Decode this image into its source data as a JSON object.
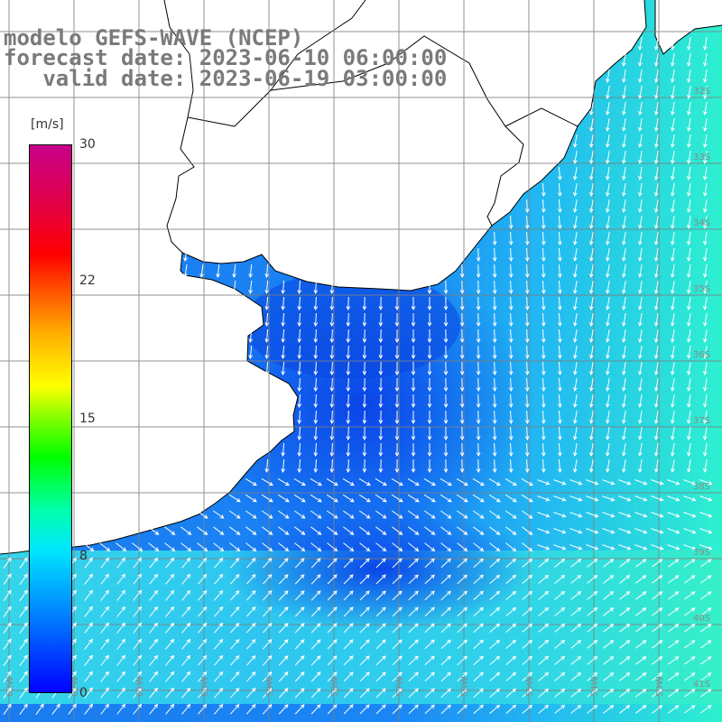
{
  "titles": {
    "line1": "modelo GEFS-WAVE (NCEP)",
    "line2": "forecast date: 2023-06-10 06:00:00",
    "line3": "   valid date: 2023-06-19 03:00:00"
  },
  "colorbar": {
    "units": "[m/s]",
    "ticks": [
      "30",
      "22",
      "15",
      "8",
      "0"
    ],
    "tick_values": [
      30,
      22,
      15,
      8,
      0
    ],
    "range": [
      0,
      30
    ],
    "colors": [
      "#0000ff",
      "#0080ff",
      "#00e6ff",
      "#00ff00",
      "#ffff00",
      "#ff8000",
      "#ff0000",
      "#c8008a"
    ]
  },
  "lat_labels": [
    "32S",
    "33S",
    "34S",
    "35S",
    "36S",
    "37S",
    "38S",
    "39S",
    "40S",
    "41S"
  ],
  "lon_labels": [
    "63W",
    "62W",
    "61W",
    "60W",
    "59W",
    "58W",
    "57W",
    "56W",
    "55W",
    "54W",
    "53W"
  ],
  "colors": {
    "land": "#ffffff",
    "coast": "#000000",
    "grid": "#7f7f7f",
    "arrow": "#ffffff",
    "sea_low": "#0b4fe6",
    "sea_mid": "#1a8cff",
    "sea_high": "#33e6e6"
  }
}
